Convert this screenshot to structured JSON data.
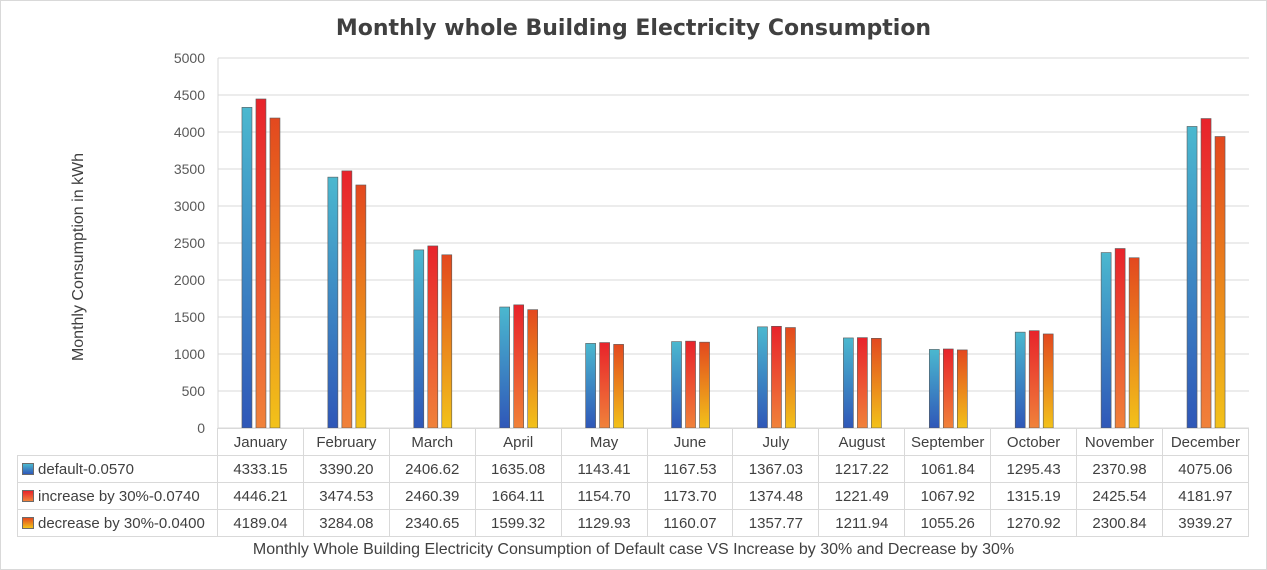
{
  "chart_data": {
    "type": "bar",
    "title": "Monthly whole Building Electricity Consumption",
    "xlabel": "Monthly Whole Building Electricity Consumption of Default case VS Increase by 30% and Decrease by 30%",
    "ylabel": "Monthly Consumption in kWh",
    "ylim": [
      0,
      5000
    ],
    "ytick_step": 500,
    "grid": true,
    "legend": "data-table",
    "categories": [
      "January",
      "February",
      "March",
      "April",
      "May",
      "June",
      "July",
      "August",
      "September",
      "October",
      "November",
      "December"
    ],
    "series": [
      {
        "name": "default-0.0570",
        "color_top": "#4bb8cf",
        "color_bottom": "#2f57b8",
        "values": [
          4333.15,
          3390.2,
          2406.62,
          1635.08,
          1143.41,
          1167.53,
          1367.03,
          1217.22,
          1061.84,
          1295.43,
          2370.98,
          4075.06
        ]
      },
      {
        "name": "increase by 30%-0.0740",
        "color_top": "#e8232b",
        "color_bottom": "#f0823a",
        "values": [
          4446.21,
          3474.53,
          2460.39,
          1664.11,
          1154.7,
          1173.7,
          1374.48,
          1221.49,
          1067.92,
          1315.19,
          2425.54,
          4181.97
        ]
      },
      {
        "name": "decrease by 30%-0.0400",
        "color_top": "#e3481f",
        "color_bottom": "#f2c21a",
        "values": [
          4189.04,
          3284.08,
          2340.65,
          1599.32,
          1129.93,
          1160.07,
          1357.77,
          1211.94,
          1055.26,
          1270.92,
          2300.84,
          3939.27
        ]
      }
    ],
    "table_values": [
      [
        "4333.15",
        "3390.20",
        "2406.62",
        "1635.08",
        "1143.41",
        "1167.53",
        "1367.03",
        "1217.22",
        "1061.84",
        "1295.43",
        "2370.98",
        "4075.06"
      ],
      [
        "4446.21",
        "3474.53",
        "2460.39",
        "1664.11",
        "1154.70",
        "1173.70",
        "1374.48",
        "1221.49",
        "1067.92",
        "1315.19",
        "2425.54",
        "4181.97"
      ],
      [
        "4189.04",
        "3284.08",
        "2340.65",
        "1599.32",
        "1129.93",
        "1160.07",
        "1357.77",
        "1211.94",
        "1055.26",
        "1270.92",
        "2300.84",
        "3939.27"
      ]
    ]
  }
}
